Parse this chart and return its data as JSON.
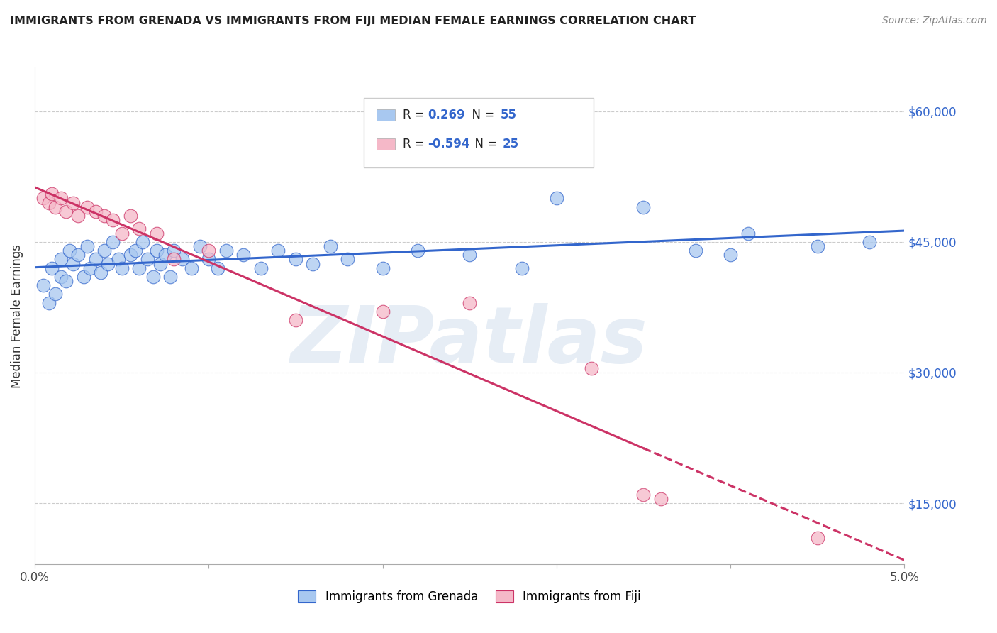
{
  "title": "IMMIGRANTS FROM GRENADA VS IMMIGRANTS FROM FIJI MEDIAN FEMALE EARNINGS CORRELATION CHART",
  "source": "Source: ZipAtlas.com",
  "ylabel": "Median Female Earnings",
  "y_ticks": [
    15000,
    30000,
    45000,
    60000
  ],
  "y_tick_labels": [
    "$15,000",
    "$30,000",
    "$45,000",
    "$60,000"
  ],
  "xlim": [
    0.0,
    5.0
  ],
  "ylim": [
    8000,
    65000
  ],
  "watermark": "ZIPatlas",
  "legend_blue_r": "0.269",
  "legend_blue_n": "55",
  "legend_pink_r": "-0.594",
  "legend_pink_n": "25",
  "legend_label_blue": "Immigrants from Grenada",
  "legend_label_pink": "Immigrants from Fiji",
  "blue_dot_color": "#A8C8F0",
  "pink_dot_color": "#F5B8C8",
  "blue_line_color": "#3366CC",
  "pink_line_color": "#CC3366",
  "blue_scatter_x": [
    0.05,
    0.08,
    0.1,
    0.12,
    0.15,
    0.15,
    0.18,
    0.2,
    0.22,
    0.25,
    0.28,
    0.3,
    0.32,
    0.35,
    0.38,
    0.4,
    0.42,
    0.45,
    0.48,
    0.5,
    0.55,
    0.58,
    0.6,
    0.62,
    0.65,
    0.68,
    0.7,
    0.72,
    0.75,
    0.78,
    0.8,
    0.85,
    0.9,
    0.95,
    1.0,
    1.05,
    1.1,
    1.2,
    1.3,
    1.4,
    1.5,
    1.6,
    1.7,
    1.8,
    2.0,
    2.2,
    2.5,
    2.8,
    3.0,
    3.5,
    3.8,
    4.0,
    4.1,
    4.5,
    4.8
  ],
  "blue_scatter_y": [
    40000,
    38000,
    42000,
    39000,
    41000,
    43000,
    40500,
    44000,
    42500,
    43500,
    41000,
    44500,
    42000,
    43000,
    41500,
    44000,
    42500,
    45000,
    43000,
    42000,
    43500,
    44000,
    42000,
    45000,
    43000,
    41000,
    44000,
    42500,
    43500,
    41000,
    44000,
    43000,
    42000,
    44500,
    43000,
    42000,
    44000,
    43500,
    42000,
    44000,
    43000,
    42500,
    44500,
    43000,
    42000,
    44000,
    43500,
    42000,
    50000,
    49000,
    44000,
    43500,
    46000,
    44500,
    45000
  ],
  "pink_scatter_x": [
    0.05,
    0.08,
    0.1,
    0.12,
    0.15,
    0.18,
    0.22,
    0.25,
    0.3,
    0.35,
    0.4,
    0.45,
    0.5,
    0.55,
    0.6,
    0.7,
    0.8,
    1.0,
    1.5,
    2.0,
    2.5,
    3.2,
    3.5,
    3.6,
    4.5
  ],
  "pink_scatter_y": [
    50000,
    49500,
    50500,
    49000,
    50000,
    48500,
    49500,
    48000,
    49000,
    48500,
    48000,
    47500,
    46000,
    48000,
    46500,
    46000,
    43000,
    44000,
    36000,
    37000,
    38000,
    30500,
    16000,
    15500,
    11000
  ]
}
